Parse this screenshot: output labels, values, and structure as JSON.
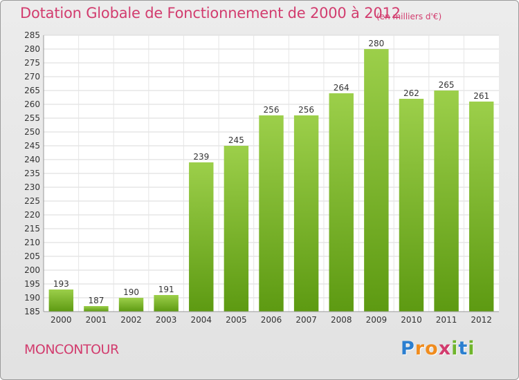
{
  "chart_data": {
    "type": "bar",
    "title": "Dotation Globale de Fonctionnement de 2000 à 2012",
    "subtitle": "(en milliers d'€)",
    "categories": [
      "2000",
      "2001",
      "2002",
      "2003",
      "2004",
      "2005",
      "2006",
      "2007",
      "2008",
      "2009",
      "2010",
      "2011",
      "2012"
    ],
    "values": [
      193,
      187,
      190,
      191,
      239,
      245,
      256,
      256,
      264,
      280,
      262,
      265,
      261
    ],
    "ylim": [
      185,
      285
    ],
    "ytick_step": 5,
    "grid": true,
    "bar_color_light": "#9ccf4a",
    "bar_color_dark": "#5d9a12"
  },
  "location": "MONCONTOUR",
  "logo": {
    "text": "Proxiti",
    "letters": [
      "P",
      "r",
      "o",
      "x",
      "i",
      "t",
      "i"
    ],
    "colors": [
      "#2b7fd0",
      "#f08c1e",
      "#f08c1e",
      "#d23c6e",
      "#6fb52c",
      "#2b7fd0",
      "#6fb52c"
    ]
  }
}
